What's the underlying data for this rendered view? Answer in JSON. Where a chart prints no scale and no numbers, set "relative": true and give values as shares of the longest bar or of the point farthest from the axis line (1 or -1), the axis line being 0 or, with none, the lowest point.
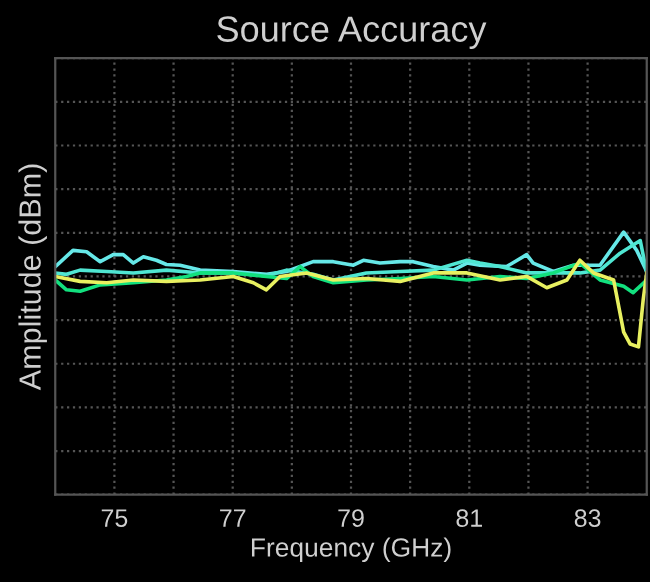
{
  "chart_data": {
    "type": "line",
    "title": "Source Accuracy",
    "xlabel": "Frequency (GHz)",
    "ylabel": "Amplitude (dBm)",
    "relative": true,
    "grid": true,
    "tick_labels": "x",
    "xlim": [
      74,
      84
    ],
    "xticks": [
      75,
      {
        "value": 76,
        "label": null
      },
      77,
      {
        "value": 78,
        "label": null
      },
      79,
      {
        "value": 80,
        "label": null
      },
      81,
      {
        "value": 82,
        "label": null
      },
      83
    ],
    "series": [
      {
        "color": "#66e8e8",
        "x": [
          74.0,
          74.3,
          74.53,
          74.76,
          74.98,
          75.15,
          75.32,
          75.49,
          75.71,
          75.88,
          76.11,
          76.45,
          77.01,
          77.57,
          77.91,
          78.36,
          78.7,
          79.04,
          79.21,
          79.49,
          79.83,
          80.05,
          80.39,
          80.73,
          80.96,
          81.18,
          81.63,
          81.97,
          82.08,
          82.42,
          82.76,
          83.21,
          83.61,
          83.83,
          84.0
        ],
        "values": [
          0.14,
          0.37,
          0.35,
          0.21,
          0.31,
          0.31,
          0.19,
          0.28,
          0.23,
          0.17,
          0.16,
          0.09,
          0.07,
          0.03,
          0.07,
          0.21,
          0.21,
          0.16,
          0.23,
          0.19,
          0.21,
          0.21,
          0.14,
          0.09,
          0.19,
          0.16,
          0.14,
          0.31,
          0.19,
          0.07,
          0.16,
          0.16,
          0.63,
          0.37,
          0.07
        ]
      },
      {
        "color": "#4fe6d2",
        "x": [
          74.0,
          74.19,
          74.42,
          74.87,
          75.32,
          75.88,
          76.45,
          77.01,
          77.57,
          77.91,
          78.36,
          78.7,
          79.26,
          79.83,
          80.39,
          80.96,
          81.18,
          81.52,
          81.97,
          82.42,
          82.87,
          83.21,
          83.55,
          83.89,
          84.0
        ],
        "values": [
          0.05,
          0.03,
          0.09,
          0.07,
          0.05,
          0.09,
          0.05,
          0.05,
          0.01,
          0.09,
          0.03,
          -0.05,
          0.05,
          0.07,
          0.09,
          0.23,
          0.19,
          0.14,
          0.05,
          0.05,
          0.05,
          0.09,
          0.33,
          0.51,
          0.05
        ]
      },
      {
        "color": "#12e07e",
        "x": [
          74.0,
          74.19,
          74.42,
          74.76,
          75.32,
          75.88,
          76.22,
          76.45,
          77.01,
          77.57,
          77.91,
          78.14,
          78.36,
          78.7,
          79.26,
          79.83,
          80.39,
          80.96,
          81.52,
          81.97,
          82.42,
          82.87,
          83.21,
          83.61,
          83.77,
          84.0
        ],
        "values": [
          -0.05,
          -0.19,
          -0.21,
          -0.12,
          -0.09,
          -0.05,
          0,
          0.05,
          0.05,
          0,
          -0.03,
          0.14,
          0,
          -0.09,
          -0.05,
          -0.03,
          0,
          -0.05,
          0,
          -0.03,
          0.05,
          0.19,
          -0.05,
          -0.14,
          -0.23,
          -0.05
        ]
      },
      {
        "color": "#e8f060",
        "x": [
          74.0,
          74.42,
          74.87,
          75.32,
          75.88,
          76.45,
          77.01,
          77.35,
          77.57,
          77.8,
          78.25,
          78.7,
          79.26,
          79.83,
          80.39,
          80.96,
          81.52,
          81.97,
          82.31,
          82.65,
          82.87,
          83.1,
          83.44,
          83.61,
          83.72,
          83.86,
          83.94,
          84.0
        ],
        "values": [
          0,
          -0.07,
          -0.09,
          -0.05,
          -0.07,
          -0.05,
          0,
          -0.09,
          -0.19,
          0,
          0.05,
          -0.05,
          -0.03,
          -0.07,
          0.05,
          0.05,
          -0.05,
          0,
          -0.16,
          -0.05,
          0.23,
          0.05,
          -0.05,
          -0.79,
          -0.96,
          -1,
          -0.33,
          0.05
        ]
      }
    ]
  }
}
